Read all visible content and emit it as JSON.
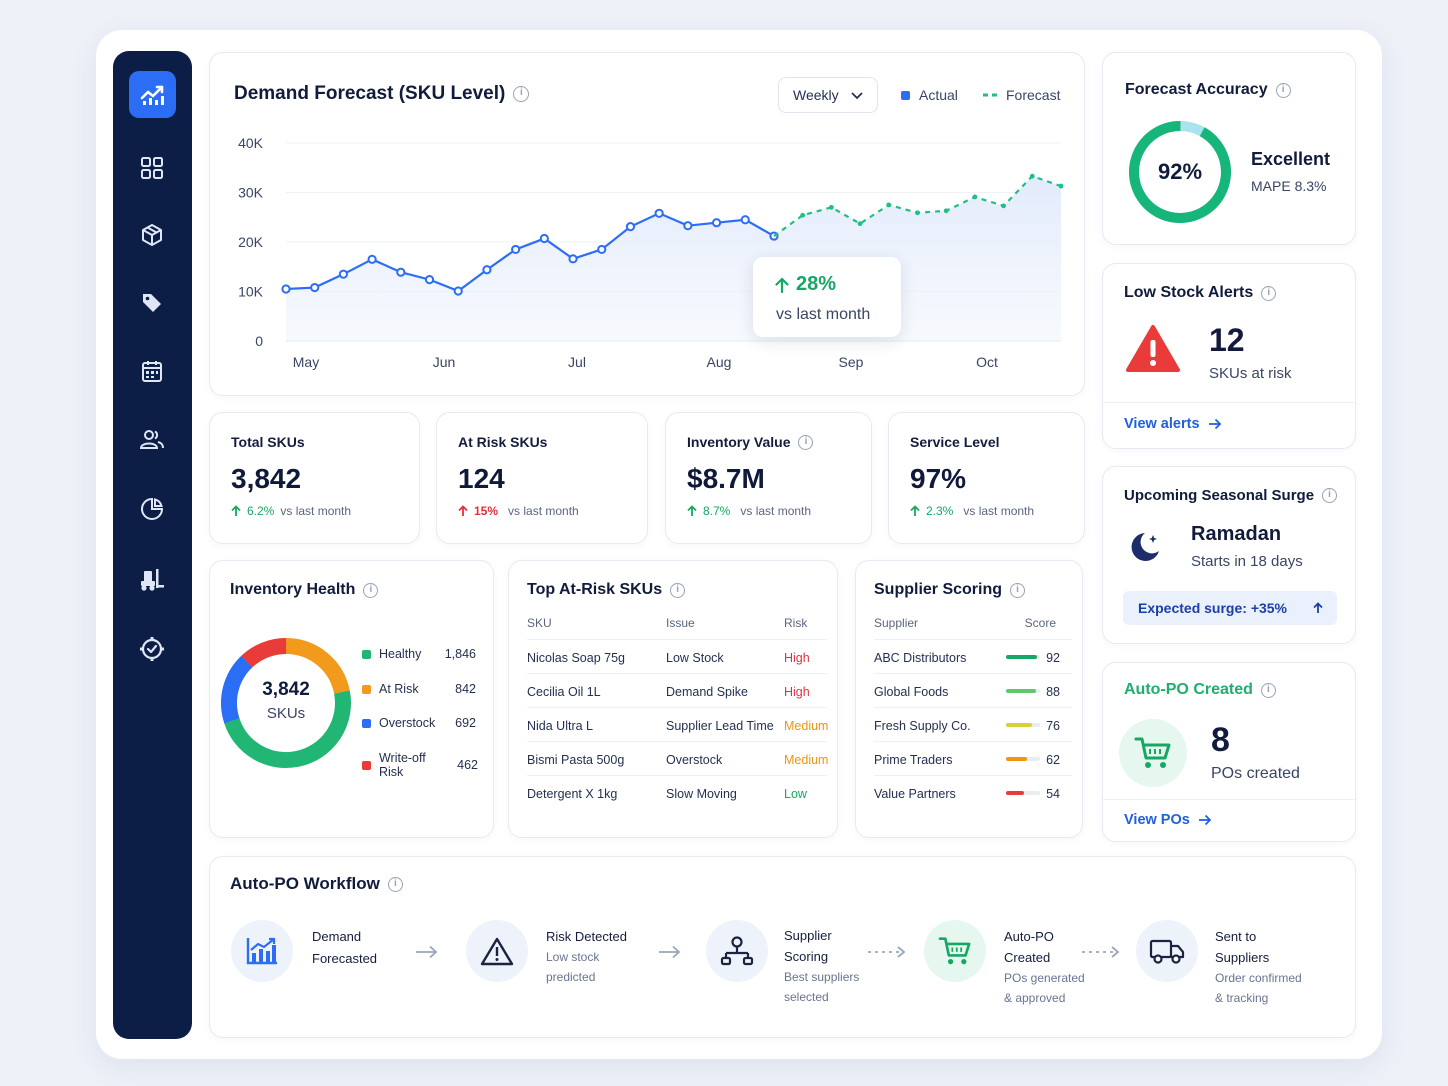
{
  "sidebar": {
    "items": [
      {
        "icon": "chart-trend-icon",
        "active": true
      },
      {
        "icon": "grid-icon"
      },
      {
        "icon": "box-icon"
      },
      {
        "icon": "tag-icon"
      },
      {
        "icon": "calendar-icon"
      },
      {
        "icon": "users-icon"
      },
      {
        "icon": "pie-chart-icon"
      },
      {
        "icon": "forklift-icon"
      },
      {
        "icon": "settings-icon"
      }
    ]
  },
  "forecast": {
    "title": "Demand Forecast (SKU Level)",
    "period": "Weekly",
    "legend_actual": "Actual",
    "legend_forecast": "Forecast",
    "callout_value": "28%",
    "callout_label": "vs last month"
  },
  "chart_data": {
    "type": "line",
    "ylim": [
      0,
      40000
    ],
    "yticks": [
      "40K",
      "30K",
      "20K",
      "10K",
      "0"
    ],
    "xticks": [
      "May",
      "Jun",
      "Jul",
      "Aug",
      "Sep",
      "Oct"
    ],
    "series": [
      {
        "name": "Actual",
        "color": "#2c6df6",
        "style": "solid",
        "values": [
          10500,
          10800,
          13500,
          16500,
          13900,
          12400,
          10100,
          14400,
          18500,
          20700,
          16600,
          18500,
          23100,
          25800,
          23300,
          23900,
          24500,
          21200
        ]
      },
      {
        "name": "Forecast",
        "color": "#1fbf85",
        "style": "dashed",
        "values": [
          21200,
          25400,
          27000,
          23700,
          27500,
          25900,
          26300,
          29100,
          27300,
          33300,
          31300
        ]
      }
    ],
    "forecast_start_index": 17
  },
  "kpis": [
    {
      "label": "Total SKUs",
      "value": "3,842",
      "delta": "6.2%",
      "delta_dir": "up",
      "delta_color": "#16a862",
      "note": "vs last month",
      "info": false
    },
    {
      "label": "At Risk SKUs",
      "value": "124",
      "delta": "15%",
      "delta_dir": "up",
      "delta_color": "#e5303c",
      "note": "vs last month",
      "info": false
    },
    {
      "label": "Inventory Value",
      "value": "$8.7M",
      "delta": "8.7%",
      "delta_dir": "up",
      "delta_color": "#16a862",
      "note": "vs last month",
      "info": true
    },
    {
      "label": "Service Level",
      "value": "97%",
      "delta": "2.3%",
      "delta_dir": "up",
      "delta_color": "#16a862",
      "note": "vs last month",
      "info": false
    }
  ],
  "health": {
    "title": "Inventory Health",
    "center_value": "3,842",
    "center_label": "SKUs",
    "items": [
      {
        "label": "Healthy",
        "value": "1,846",
        "color": "#21b673"
      },
      {
        "label": "At Risk",
        "value": "842",
        "color": "#f29a1c"
      },
      {
        "label": "Overstock",
        "value": "692",
        "color": "#2c6df6"
      },
      {
        "label": "Write-off Risk",
        "value": "462",
        "color": "#ea3b3b"
      }
    ]
  },
  "atrisk": {
    "title": "Top At-Risk SKUs",
    "headers": [
      "SKU",
      "Issue",
      "Risk"
    ],
    "rows": [
      {
        "sku": "Nicolas Soap 75g",
        "issue": "Low Stock",
        "risk": "High",
        "color": "#e5303c"
      },
      {
        "sku": "Cecilia Oil 1L",
        "issue": "Demand Spike",
        "risk": "High",
        "color": "#e5303c"
      },
      {
        "sku": "Nida Ultra L",
        "issue": "Supplier Lead Time",
        "risk": "Medium",
        "color": "#f0950f"
      },
      {
        "sku": "Bismi Pasta 500g",
        "issue": "Overstock",
        "risk": "Medium",
        "color": "#f0950f"
      },
      {
        "sku": "Detergent X 1kg",
        "issue": "Slow Moving",
        "risk": "Low",
        "color": "#16a862"
      }
    ]
  },
  "suppliers": {
    "title": "Supplier Scoring",
    "headers": [
      "Supplier",
      "Score"
    ],
    "rows": [
      {
        "name": "ABC Distributors",
        "score": "92",
        "value": 92,
        "color": "#16a862"
      },
      {
        "name": "Global Foods",
        "score": "88",
        "value": 88,
        "color": "#5ec96b"
      },
      {
        "name": "Fresh Supply Co.",
        "score": "76",
        "value": 76,
        "color": "#d7d134"
      },
      {
        "name": "Prime Traders",
        "score": "62",
        "value": 62,
        "color": "#f0950f"
      },
      {
        "name": "Value Partners",
        "score": "54",
        "value": 54,
        "color": "#ea3b3b"
      }
    ]
  },
  "accuracy": {
    "title": "Forecast Accuracy",
    "value": "92%",
    "percent": 92,
    "rating": "Excellent",
    "mape": "MAPE 8.3%"
  },
  "lowstock": {
    "title": "Low Stock Alerts",
    "count": "12",
    "label": "SKUs at risk",
    "link": "View alerts"
  },
  "seasonal": {
    "title": "Upcoming Seasonal Surge",
    "event": "Ramadan",
    "starts": "Starts in 18 days",
    "surge": "Expected surge: +35%"
  },
  "autopo": {
    "title": "Auto-PO Created",
    "count": "8",
    "label": "POs created",
    "link": "View POs"
  },
  "workflow": {
    "title": "Auto-PO Workflow",
    "steps": [
      {
        "title1": "Demand",
        "title2": "Forecasted",
        "sub1": "",
        "sub2": "",
        "icon": "chart-icon"
      },
      {
        "title1": "Risk Detected",
        "title2": "",
        "sub1": "Low stock",
        "sub2": "predicted",
        "icon": "warning-icon"
      },
      {
        "title1": "Supplier",
        "title2": "Scoring",
        "sub1": "Best suppliers",
        "sub2": "selected",
        "icon": "network-icon"
      },
      {
        "title1": "Auto-PO",
        "title2": "Created",
        "sub1": "POs generated",
        "sub2": "& approved",
        "icon": "cart-icon"
      },
      {
        "title1": "Sent to",
        "title2": "Suppliers",
        "sub1": "Order confirmed",
        "sub2": "& tracking",
        "icon": "truck-icon"
      }
    ]
  }
}
